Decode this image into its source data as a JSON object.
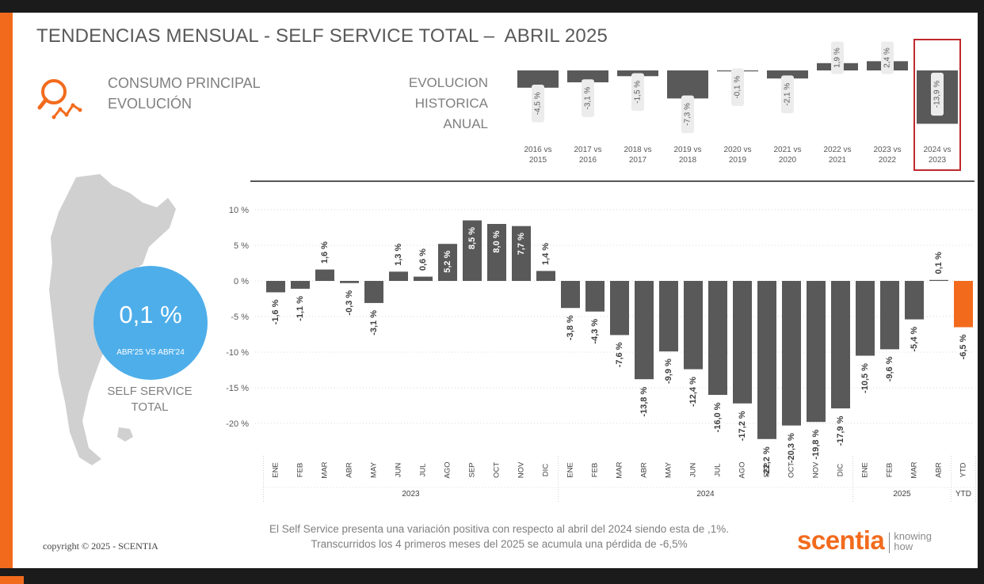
{
  "header": {
    "title": "TENDENCIAS MENSUAL - SELF SERVICE TOTAL –  ABRIL 2025",
    "subtitle_line1": "CONSUMO PRINCIPAL",
    "subtitle_line2": "EVOLUCIÓN",
    "annual_label_line1": "EVOLUCION",
    "annual_label_line2": "HISTORICA ANUAL"
  },
  "highlight": {
    "value": "0,1 %",
    "caption": "ABR'25 VS ABR'24",
    "segment_line1": "SELF SERVICE",
    "segment_line2": "TOTAL"
  },
  "footer": {
    "note_line1": "El Self Service presenta una variación positiva con respecto al abril del 2024 siendo esta de ,1%.",
    "note_line2": "Transcurridos los 4 primeros meses del 2025 se acumula una pérdida de -6,5%",
    "copyright": "copyright © 2025 - SCENTIA",
    "logo_word": "scentia",
    "logo_tag_line1": "knowing",
    "logo_tag_line2": "how"
  },
  "colors": {
    "bar": "#595959",
    "ytd_bar": "#f26b1d",
    "accent": "#f26b1d",
    "bubble": "#4eaeea",
    "highlight_box": "#c0282d"
  },
  "chart_data": [
    {
      "type": "bar",
      "categories": [
        [
          "2016 vs",
          "2015"
        ],
        [
          "2017 vs",
          "2016"
        ],
        [
          "2018 vs",
          "2017"
        ],
        [
          "2019 vs",
          "2018"
        ],
        [
          "2020 vs",
          "2019"
        ],
        [
          "2021 vs",
          "2020"
        ],
        [
          "2022 vs",
          "2021"
        ],
        [
          "2023 vs",
          "2022"
        ],
        [
          "2024 vs",
          "2023"
        ]
      ],
      "values": [
        -4.5,
        -3.1,
        -1.5,
        -7.3,
        -0.1,
        -2.1,
        1.9,
        2.4,
        -13.9
      ],
      "labels": [
        "-4,5 %",
        "-3,1 %",
        "-1,5 %",
        "-7,3 %",
        "-0,1 %",
        "-2,1 %",
        "1,9 %",
        "2,4 %",
        "-13,9 %"
      ],
      "highlighted_index": 8
    },
    {
      "type": "bar",
      "categories": [
        "ENE",
        "FEB",
        "MAR",
        "ABR",
        "MAY",
        "JUN",
        "JUL",
        "AGO",
        "SEP",
        "OCT",
        "NOV",
        "DIC",
        "ENE",
        "FEB",
        "MAR",
        "ABR",
        "MAY",
        "JUN",
        "JUL",
        "AGO",
        "SEP",
        "OCT",
        "NOV",
        "DIC",
        "ENE",
        "FEB",
        "MAR",
        "ABR",
        "YTD"
      ],
      "values": [
        -1.6,
        -1.1,
        1.6,
        -0.3,
        -3.1,
        1.3,
        0.6,
        5.2,
        8.5,
        8.0,
        7.7,
        1.4,
        -3.8,
        -4.3,
        -7.6,
        -13.8,
        -9.9,
        -12.4,
        -16.0,
        -17.2,
        -22.2,
        -20.3,
        -19.8,
        -17.9,
        -10.5,
        -9.6,
        -5.4,
        0.1,
        -6.5
      ],
      "labels": [
        "-1,6 %",
        "-1,1 %",
        "1,6 %",
        "-0,3 %",
        "-3,1 %",
        "1,3 %",
        "0,6 %",
        "5,2 %",
        "8,5 %",
        "8,0 %",
        "7,7 %",
        "1,4 %",
        "-3,8 %",
        "-4,3 %",
        "-7,6 %",
        "-13,8 %",
        "-9,9 %",
        "-12,4 %",
        "-16,0 %",
        "-17,2 %",
        "-22,2 %",
        "-20,3 %",
        "-19,8 %",
        "-17,9 %",
        "-10,5 %",
        "-9,6 %",
        "-5,4 %",
        "0,1 %",
        "-6,5 %"
      ],
      "groups": [
        {
          "name": "2023",
          "count": 12
        },
        {
          "name": "2024",
          "count": 12
        },
        {
          "name": "2025",
          "count": 4
        },
        {
          "name": "YTD",
          "count": 1
        }
      ],
      "y_ticks": [
        10,
        5,
        0,
        -5,
        -10,
        -15,
        -20
      ],
      "y_tick_labels": [
        "10 %",
        "5 %",
        "0 %",
        "-5 %",
        "-10 %",
        "-15 %",
        "-20 %"
      ],
      "ylim": [
        -22.2,
        10
      ],
      "grid": true
    }
  ]
}
